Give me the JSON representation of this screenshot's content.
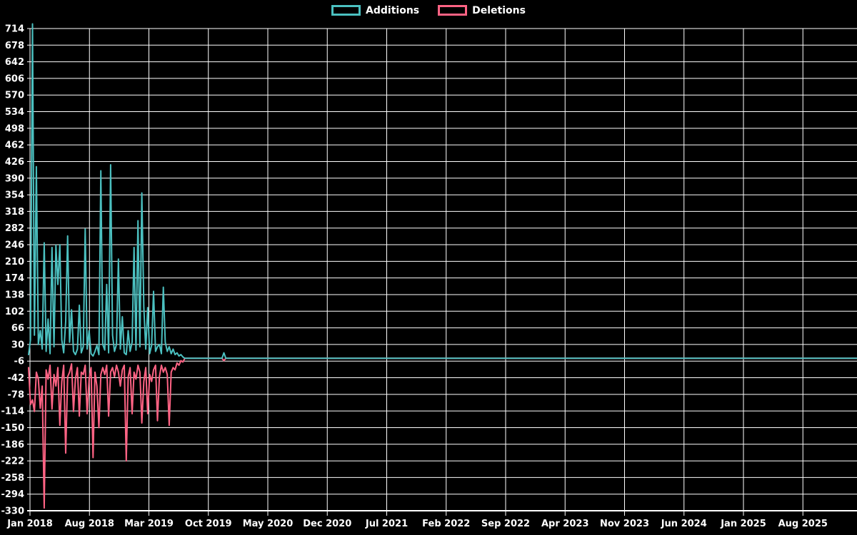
{
  "chart_data": {
    "type": "line",
    "title": "",
    "description": "Weekly code additions (positive, teal) and deletions (negative, pink) over time; activity concentrated Jan 2018 - Jun 2019, one small spike near Oct-Nov 2019, flat at zero afterwards through Aug 2025",
    "background_color": "#000000",
    "grid_color": "#ffffff",
    "text_color": "#ffffff",
    "legend_position": "top",
    "x_axis": {
      "tick_labels": [
        "Jan 2018",
        "Aug 2018",
        "Mar 2019",
        "Oct 2019",
        "May 2020",
        "Dec 2020",
        "Jul 2021",
        "Feb 2022",
        "Sep 2022",
        "Apr 2023",
        "Nov 2023",
        "Jun 2024",
        "Jan 2025",
        "Aug 2025"
      ]
    },
    "y_axis": {
      "max": 714,
      "min": -330,
      "step": 36,
      "tick_values": [
        714,
        678,
        642,
        606,
        570,
        534,
        498,
        462,
        426,
        390,
        354,
        318,
        282,
        246,
        210,
        174,
        138,
        102,
        66,
        30,
        -6,
        -42,
        -78,
        -114,
        -150,
        -186,
        -222,
        -258,
        -294,
        -330
      ]
    },
    "weeks_total": 425,
    "series": [
      {
        "name": "Additions",
        "color": "#4bc0c0",
        "weekly_values": [
          8,
          40,
          724,
          50,
          415,
          30,
          60,
          20,
          250,
          15,
          85,
          10,
          240,
          25,
          245,
          160,
          246,
          40,
          12,
          80,
          265,
          35,
          105,
          15,
          8,
          20,
          115,
          12,
          25,
          280,
          20,
          60,
          10,
          5,
          15,
          28,
          8,
          406,
          30,
          18,
          160,
          12,
          419,
          50,
          15,
          30,
          215,
          20,
          90,
          12,
          8,
          60,
          15,
          35,
          240,
          18,
          298,
          25,
          358,
          110,
          20,
          110,
          10,
          28,
          145,
          15,
          25,
          30,
          10,
          154,
          35,
          15,
          25,
          10,
          20,
          8,
          12,
          5,
          8,
          3
        ],
        "extra_points": [
          {
            "week": 100,
            "value": 12
          }
        ]
      },
      {
        "name": "Deletions",
        "color": "#ff6384",
        "weekly_values": [
          -20,
          -100,
          -90,
          -115,
          -30,
          -45,
          -108,
          -60,
          -324,
          -25,
          -45,
          -15,
          -110,
          -35,
          -60,
          -20,
          -145,
          -50,
          -15,
          -205,
          -40,
          -30,
          -12,
          -115,
          -45,
          -20,
          -125,
          -30,
          -35,
          -15,
          -120,
          -45,
          -20,
          -215,
          -30,
          -60,
          -150,
          -35,
          -20,
          -35,
          -15,
          -125,
          -30,
          -20,
          -40,
          -15,
          -30,
          -60,
          -25,
          -15,
          -222,
          -40,
          -20,
          -120,
          -30,
          -45,
          -15,
          -30,
          -140,
          -50,
          -20,
          -120,
          -35,
          -50,
          -25,
          -15,
          -135,
          -40,
          -15,
          -30,
          -20,
          -35,
          -145,
          -30,
          -20,
          -25,
          -10,
          -15,
          -5,
          -8
        ],
        "extra_points": [
          {
            "week": 100,
            "value": -5
          }
        ]
      }
    ]
  }
}
